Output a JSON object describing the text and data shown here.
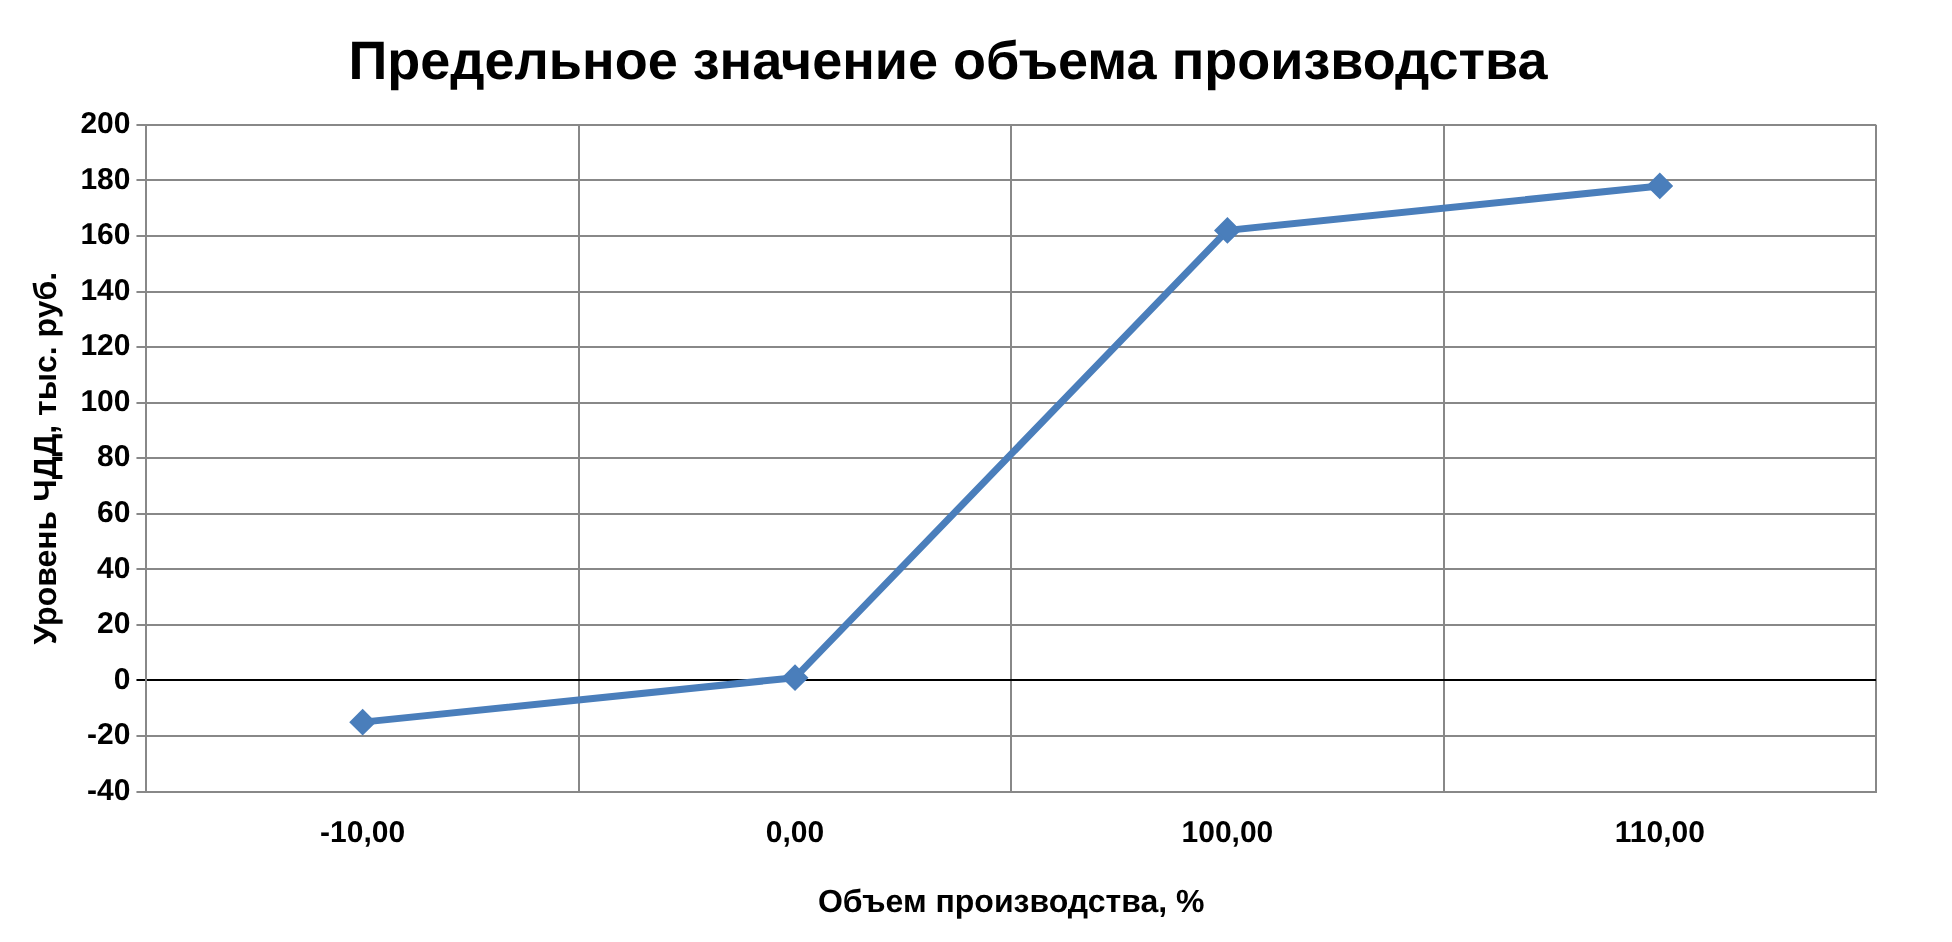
{
  "chart_data": {
    "type": "line",
    "title": "Предельное значение объема производства",
    "xlabel": "Объем производства, %",
    "ylabel": "Уровень ЧДД, тыс. руб.",
    "categories": [
      "-10,00",
      "0,00",
      "100,00",
      "110,00"
    ],
    "series": [
      {
        "color": "#4a7ebb",
        "values": [
          -15,
          1,
          162,
          178
        ]
      }
    ],
    "ylim": [
      -40,
      200
    ],
    "yticks": [
      -40,
      -20,
      0,
      20,
      40,
      60,
      80,
      100,
      120,
      140,
      160,
      180,
      200
    ],
    "grid": true,
    "legend": false,
    "marker": "diamond",
    "line_style": "solid"
  }
}
